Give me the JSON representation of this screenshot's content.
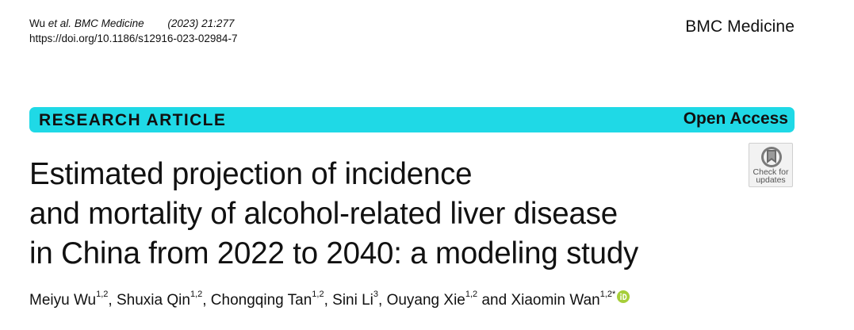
{
  "citation": {
    "authors_short": "Wu",
    "et_al": "et al.",
    "journal_short": "BMC Medicine",
    "year_volume": "(2023) 21:277",
    "doi": "https://doi.org/10.1186/s12916-023-02984-7"
  },
  "journal_name": "BMC Medicine",
  "banner": {
    "article_type": "RESEARCH ARTICLE",
    "access": "Open Access",
    "color": "#1fd9e6"
  },
  "updates_badge": {
    "line1": "Check for",
    "line2": "updates",
    "icon": "check-for-updates-icon"
  },
  "title": {
    "lines": [
      "Estimated projection of incidence",
      "and mortality of alcohol-related liver disease",
      "in China from 2022 to 2040: a modeling study"
    ]
  },
  "authors": [
    {
      "name": "Meiyu Wu",
      "aff": "1,2",
      "sep": ", "
    },
    {
      "name": "Shuxia Qin",
      "aff": "1,2",
      "sep": ", "
    },
    {
      "name": "Chongqing Tan",
      "aff": "1,2",
      "sep": ", "
    },
    {
      "name": "Sini Li",
      "aff": "3",
      "sep": ", "
    },
    {
      "name": "Ouyang Xie",
      "aff": "1,2",
      "sep": " and "
    },
    {
      "name": "Xiaomin Wan",
      "aff": "1,2*",
      "sep": ""
    }
  ],
  "orcid": {
    "icon": "orcid-icon",
    "color": "#a6ce39"
  }
}
